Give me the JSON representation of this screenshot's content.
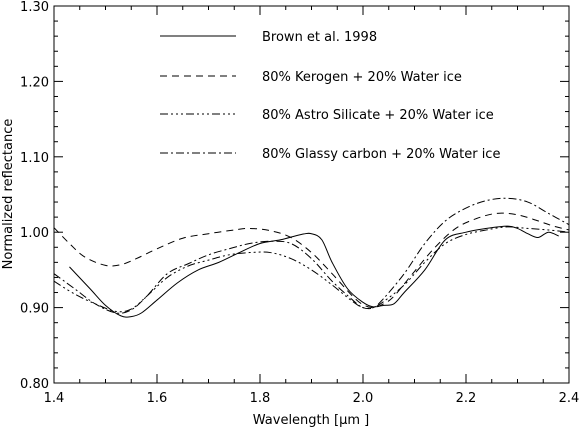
{
  "chart_data": {
    "type": "line",
    "title": "",
    "xlabel": "Wavelength [μm ]",
    "ylabel": "Normalized reflectance",
    "xlim": [
      1.4,
      2.4
    ],
    "ylim": [
      0.8,
      1.3
    ],
    "xticks": [
      "1.4",
      "1.6",
      "1.8",
      "2.0",
      "2.2",
      "2.4"
    ],
    "yticks": [
      "0.80",
      "0.90",
      "1.00",
      "1.10",
      "1.20",
      "1.30"
    ],
    "grid": false,
    "legend_position": "top-center",
    "series": [
      {
        "name": "Brown et al. 1998",
        "dash": "solid",
        "x": [
          1.43,
          1.47,
          1.5,
          1.53,
          1.55,
          1.57,
          1.6,
          1.64,
          1.68,
          1.72,
          1.76,
          1.8,
          1.84,
          1.88,
          1.9,
          1.92,
          1.94,
          1.97,
          2.0,
          2.02,
          2.04,
          2.06,
          2.08,
          2.12,
          2.16,
          2.2,
          2.24,
          2.28,
          2.3,
          2.32,
          2.34,
          2.36,
          2.38
        ],
        "y": [
          0.954,
          0.925,
          0.903,
          0.889,
          0.888,
          0.893,
          0.91,
          0.933,
          0.95,
          0.96,
          0.973,
          0.985,
          0.99,
          0.997,
          0.998,
          0.99,
          0.96,
          0.925,
          0.907,
          0.901,
          0.903,
          0.905,
          0.92,
          0.95,
          0.99,
          1.0,
          1.005,
          1.008,
          1.005,
          0.998,
          0.993,
          1.0,
          0.995
        ]
      },
      {
        "name": "80% Kerogen + 20% Water ice",
        "dash": "dashed",
        "x": [
          1.4,
          1.43,
          1.46,
          1.5,
          1.53,
          1.56,
          1.6,
          1.65,
          1.7,
          1.75,
          1.78,
          1.82,
          1.86,
          1.9,
          1.94,
          1.98,
          2.0,
          2.02,
          2.04,
          2.06,
          2.1,
          2.14,
          2.18,
          2.22,
          2.26,
          2.3,
          2.34,
          2.37,
          2.4
        ],
        "y": [
          1.006,
          0.985,
          0.967,
          0.956,
          0.957,
          0.965,
          0.978,
          0.992,
          0.998,
          1.003,
          1.005,
          1.002,
          0.993,
          0.973,
          0.945,
          0.915,
          0.904,
          0.9,
          0.905,
          0.915,
          0.948,
          0.98,
          1.005,
          1.018,
          1.025,
          1.023,
          1.015,
          1.008,
          1.003
        ]
      },
      {
        "name": "80% Astro Silicate + 20% Water ice",
        "dash": "dash-dot-dot",
        "x": [
          1.4,
          1.44,
          1.48,
          1.52,
          1.55,
          1.58,
          1.62,
          1.66,
          1.7,
          1.74,
          1.78,
          1.82,
          1.86,
          1.9,
          1.94,
          1.98,
          2.0,
          2.02,
          2.04,
          2.08,
          2.12,
          2.16,
          2.2,
          2.24,
          2.28,
          2.32,
          2.36,
          2.4
        ],
        "y": [
          0.935,
          0.918,
          0.905,
          0.895,
          0.898,
          0.915,
          0.94,
          0.955,
          0.963,
          0.97,
          0.973,
          0.973,
          0.965,
          0.95,
          0.93,
          0.908,
          0.9,
          0.9,
          0.908,
          0.93,
          0.96,
          0.985,
          0.997,
          1.003,
          1.007,
          1.005,
          1.003,
          1.0
        ]
      },
      {
        "name": "80% Glassy carbon + 20% Water ice",
        "dash": "dash-dot",
        "x": [
          1.4,
          1.44,
          1.48,
          1.52,
          1.55,
          1.58,
          1.62,
          1.66,
          1.7,
          1.74,
          1.78,
          1.82,
          1.86,
          1.9,
          1.94,
          1.98,
          2.0,
          2.02,
          2.04,
          2.08,
          2.12,
          2.16,
          2.2,
          2.24,
          2.28,
          2.32,
          2.36,
          2.4
        ],
        "y": [
          0.945,
          0.925,
          0.905,
          0.893,
          0.897,
          0.915,
          0.945,
          0.958,
          0.97,
          0.978,
          0.985,
          0.988,
          0.985,
          0.965,
          0.935,
          0.91,
          0.9,
          0.9,
          0.912,
          0.945,
          0.985,
          1.015,
          1.032,
          1.042,
          1.045,
          1.04,
          1.025,
          1.01
        ]
      }
    ]
  }
}
